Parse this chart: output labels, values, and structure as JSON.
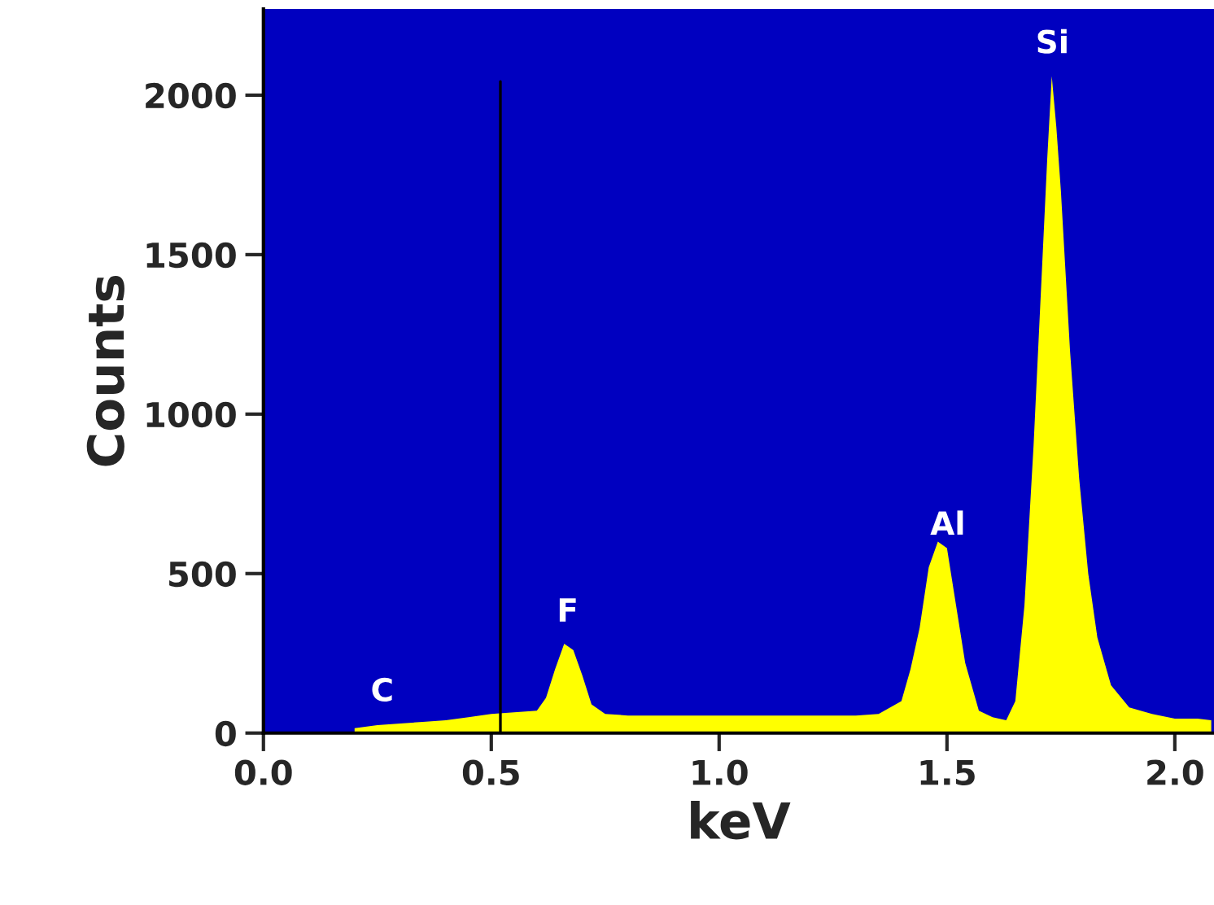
{
  "chart_data": {
    "type": "area",
    "xlabel": "keV",
    "ylabel": "Counts",
    "x": [
      0.2,
      0.25,
      0.3,
      0.35,
      0.4,
      0.45,
      0.5,
      0.55,
      0.6,
      0.62,
      0.64,
      0.66,
      0.68,
      0.7,
      0.72,
      0.75,
      0.8,
      0.9,
      1.0,
      1.1,
      1.2,
      1.3,
      1.35,
      1.4,
      1.42,
      1.44,
      1.46,
      1.48,
      1.5,
      1.52,
      1.54,
      1.57,
      1.6,
      1.63,
      1.65,
      1.67,
      1.69,
      1.7,
      1.72,
      1.73,
      1.74,
      1.75,
      1.77,
      1.79,
      1.81,
      1.83,
      1.86,
      1.9,
      1.95,
      2.0,
      2.05,
      2.08
    ],
    "series": [
      {
        "color": "#ffff00",
        "values": [
          15,
          25,
          30,
          35,
          40,
          50,
          60,
          65,
          70,
          110,
          200,
          280,
          260,
          180,
          90,
          60,
          55,
          55,
          55,
          55,
          55,
          55,
          60,
          100,
          200,
          330,
          520,
          600,
          580,
          400,
          220,
          70,
          50,
          40,
          100,
          400,
          900,
          1200,
          1800,
          2060,
          1900,
          1700,
          1200,
          800,
          500,
          300,
          150,
          80,
          60,
          45,
          45,
          40
        ]
      }
    ],
    "xlim": [
      0.0,
      2.086
    ],
    "ylim": [
      0,
      2270
    ],
    "xticks": [
      {
        "value": 0.0,
        "label": "0.0"
      },
      0.5,
      {
        "value": 1.0,
        "label": "1.0"
      },
      1.5,
      {
        "value": 2.0,
        "label": "2.0"
      }
    ],
    "yticks": [
      0,
      500,
      1000,
      1500,
      2000
    ],
    "ref_lines": [
      {
        "axis": "x",
        "value": 0.52,
        "color": "#000000"
      }
    ],
    "annotations": [
      "C",
      "F",
      "Al",
      "Si"
    ],
    "grid": false,
    "legend": false
  }
}
